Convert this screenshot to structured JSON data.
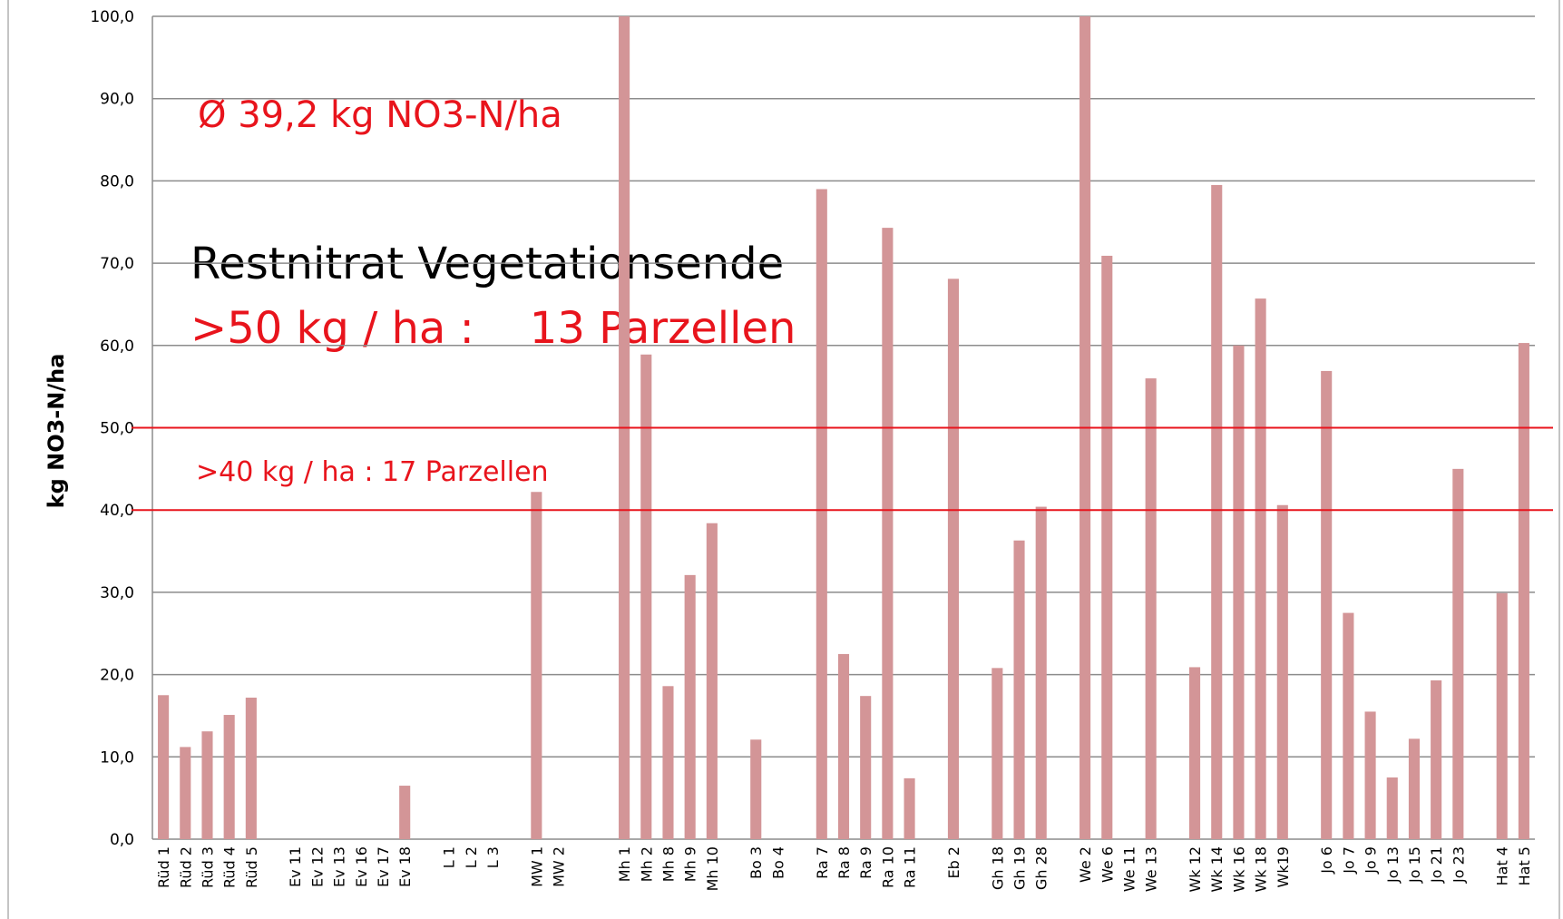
{
  "chart_data": {
    "type": "bar",
    "y_label": "kg NO3-N/ha",
    "annotations": [
      "Ø  39,2 kg NO3-N/ha",
      "Restnitrat Vegetationsende",
      ">50 kg / ha :    13 Parzellen",
      ">40 kg / ha : 17 Parzellen"
    ],
    "reference_lines": [
      50,
      40
    ],
    "reference_color": "#e8141c",
    "categories": [
      "Rüd 1",
      "Rüd 2",
      "Rüd 3",
      "Rüd 4",
      "Rüd 5",
      null,
      "Ev 11",
      "Ev 12",
      "Ev 13",
      "Ev 16",
      "Ev 17",
      "Ev 18",
      null,
      "L 1",
      "L 2",
      "L 3",
      null,
      "MW 1",
      "MW 2",
      null,
      null,
      "Mh 1",
      "Mh 2",
      "Mh 8",
      "Mh 9",
      "Mh 10",
      null,
      "Bo 3",
      "Bo 4",
      null,
      "Ra 7",
      "Ra 8",
      "Ra 9",
      "Ra 10",
      "Ra 11",
      null,
      "Eb 2",
      null,
      "Gh 18",
      "Gh 19",
      "Gh 28",
      null,
      "We 2",
      "We 6",
      "We 11",
      "We 13",
      null,
      "Wk 12",
      "Wk 14",
      "Wk 16",
      "Wk 18",
      "Wk19",
      null,
      "Jo 6",
      "Jo 7",
      "Jo 9",
      "Jo 13",
      "Jo 15",
      "Jo 21",
      "Jo 23",
      null,
      "Hat 4",
      "Hat 5"
    ],
    "values": [
      17.5,
      11.2,
      13.1,
      15.1,
      17.2,
      null,
      null,
      null,
      null,
      null,
      null,
      6.5,
      null,
      null,
      null,
      null,
      null,
      42.2,
      null,
      null,
      null,
      100,
      58.9,
      18.6,
      32.1,
      38.4,
      null,
      12.1,
      null,
      null,
      79,
      22.5,
      17.4,
      74.3,
      7.4,
      null,
      68.1,
      null,
      20.8,
      36.3,
      40.4,
      null,
      100,
      70.9,
      null,
      56,
      null,
      20.9,
      79.5,
      60,
      65.7,
      40.6,
      null,
      56.9,
      27.5,
      15.5,
      7.5,
      12.2,
      19.3,
      45,
      null,
      29.9,
      60.3
    ],
    "color": "#d39597",
    "ylim": [
      0,
      100
    ],
    "yticks": [
      {
        "value": 0,
        "label": "0,0"
      },
      {
        "value": 10,
        "label": "10,0"
      },
      {
        "value": 20,
        "label": "20,0"
      },
      {
        "value": 30,
        "label": "30,0"
      },
      {
        "value": 40,
        "label": "40,0"
      },
      {
        "value": 50,
        "label": "50,0"
      },
      {
        "value": 60,
        "label": "60,0"
      },
      {
        "value": 70,
        "label": "70,0"
      },
      {
        "value": 80,
        "label": "80,0"
      },
      {
        "value": 90,
        "label": "90,0"
      },
      {
        "value": 100,
        "label": "100,0"
      }
    ],
    "grid": true
  }
}
